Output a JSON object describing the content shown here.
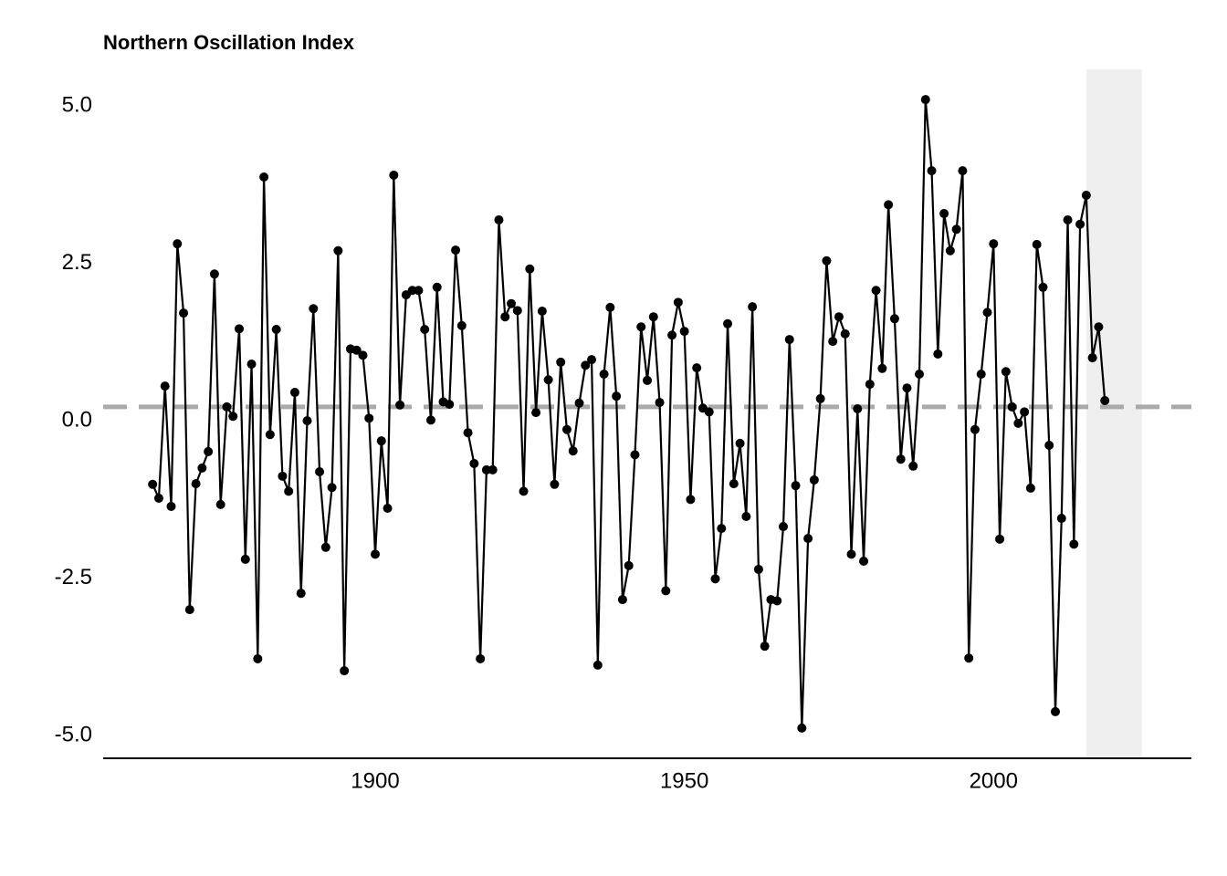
{
  "chart_data": {
    "type": "line",
    "title": "Northern Oscillation Index",
    "x": [
      1864,
      1865,
      1866,
      1867,
      1868,
      1869,
      1870,
      1871,
      1872,
      1873,
      1874,
      1875,
      1876,
      1877,
      1878,
      1879,
      1880,
      1881,
      1882,
      1883,
      1884,
      1885,
      1886,
      1887,
      1888,
      1889,
      1890,
      1891,
      1892,
      1893,
      1894,
      1895,
      1896,
      1897,
      1898,
      1899,
      1900,
      1901,
      1902,
      1903,
      1904,
      1905,
      1906,
      1907,
      1908,
      1909,
      1910,
      1911,
      1912,
      1913,
      1914,
      1915,
      1916,
      1917,
      1918,
      1919,
      1920,
      1921,
      1922,
      1923,
      1924,
      1925,
      1926,
      1927,
      1928,
      1929,
      1930,
      1931,
      1932,
      1933,
      1934,
      1935,
      1936,
      1937,
      1938,
      1939,
      1940,
      1941,
      1942,
      1943,
      1944,
      1945,
      1946,
      1947,
      1948,
      1949,
      1950,
      1951,
      1952,
      1953,
      1954,
      1955,
      1956,
      1957,
      1958,
      1959,
      1960,
      1961,
      1962,
      1963,
      1964,
      1965,
      1966,
      1967,
      1968,
      1969,
      1970,
      1971,
      1972,
      1973,
      1974,
      1975,
      1976,
      1977,
      1978,
      1979,
      1980,
      1981,
      1982,
      1983,
      1984,
      1985,
      1986,
      1987,
      1988,
      1989,
      1990,
      1991,
      1992,
      1993,
      1994,
      1995,
      1996,
      1997,
      1998,
      1999,
      2000,
      2001,
      2002,
      2003,
      2004,
      2005,
      2006,
      2007,
      2008,
      2009,
      2010,
      2011,
      2012,
      2013,
      2014,
      2015,
      2016,
      2017,
      2018
    ],
    "values": [
      -1.01,
      -1.23,
      0.55,
      -1.36,
      2.81,
      1.71,
      -3.0,
      -1.0,
      -0.75,
      -0.49,
      2.33,
      -1.33,
      0.22,
      0.07,
      1.46,
      -2.2,
      0.9,
      -3.78,
      3.87,
      -0.22,
      1.45,
      -0.88,
      -1.12,
      0.45,
      -2.74,
      0.0,
      1.78,
      -0.81,
      -2.01,
      -1.06,
      2.7,
      -3.97,
      1.14,
      1.12,
      1.04,
      0.04,
      -2.12,
      -0.32,
      -1.39,
      3.9,
      0.25,
      2.0,
      2.07,
      2.07,
      1.45,
      0.01,
      2.12,
      0.3,
      0.26,
      2.71,
      1.51,
      -0.19,
      -0.68,
      -3.78,
      -0.78,
      -0.78,
      3.19,
      1.65,
      1.86,
      1.75,
      -1.12,
      2.41,
      0.13,
      1.74,
      0.65,
      -1.01,
      0.93,
      -0.14,
      -0.48,
      0.28,
      0.88,
      0.97,
      -3.88,
      0.74,
      1.8,
      0.39,
      -2.84,
      -2.3,
      -0.54,
      1.49,
      0.64,
      1.65,
      0.29,
      -2.7,
      1.36,
      1.88,
      1.42,
      -1.25,
      0.84,
      0.2,
      0.14,
      -2.51,
      -1.71,
      1.54,
      -1.0,
      -0.36,
      -1.52,
      1.81,
      -2.36,
      -3.58,
      -2.84,
      -2.86,
      -1.68,
      1.29,
      -1.03,
      -4.88,
      -1.87,
      -0.94,
      0.35,
      2.54,
      1.26,
      1.65,
      1.38,
      -2.12,
      0.19,
      -2.23,
      0.58,
      2.07,
      0.83,
      3.43,
      1.62,
      -0.61,
      0.52,
      -0.72,
      0.74,
      5.1,
      3.97,
      1.06,
      3.29,
      2.7,
      3.04,
      3.97,
      -3.77,
      -0.14,
      0.74,
      1.72,
      2.81,
      -1.88,
      0.78,
      0.22,
      -0.04,
      0.14,
      -1.07,
      2.8,
      2.12,
      -0.39,
      -4.62,
      -1.55,
      3.19,
      -1.96,
      3.12,
      3.58,
      1.0,
      1.49,
      0.32
    ],
    "color": "#000000",
    "xlim": [
      1856,
      2032
    ],
    "ylim": [
      -5.36,
      5.58
    ],
    "xticks": [
      1900,
      1950,
      2000
    ],
    "yticks": [
      {
        "value": 5,
        "label": "5.0"
      },
      {
        "value": 2.5,
        "label": "2.5"
      },
      {
        "value": 0,
        "label": "0.0"
      },
      {
        "value": -2.5,
        "label": "-2.5"
      },
      {
        "value": -5,
        "label": "-5.0"
      }
    ],
    "reference_line": 0.22,
    "reference_color": "#aaaaaa",
    "highlight_range": [
      2015,
      2024
    ],
    "highlight_color": "#efefef",
    "grid": false
  }
}
